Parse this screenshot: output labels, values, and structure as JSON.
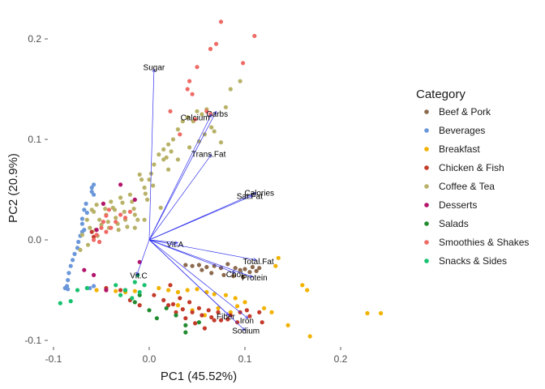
{
  "chart_data": {
    "type": "scatter",
    "subtype": "pca-biplot",
    "xlabel": "PC1 (45.52%)",
    "ylabel": "PC2 (20.9%)",
    "xlim": [
      -0.1,
      0.23
    ],
    "ylim": [
      -0.105,
      0.22
    ],
    "x_ticks": [
      -0.1,
      0.0,
      0.1,
      0.2
    ],
    "x_tick_labels": [
      "-0.1",
      "0.0",
      "0.1",
      "0.2"
    ],
    "y_ticks": [
      -0.1,
      0.0,
      0.1,
      0.2
    ],
    "y_tick_labels": [
      "-0.1",
      "0.0",
      "0.1",
      "0.2"
    ],
    "grid": false,
    "legend": {
      "title": "Category",
      "position": "right",
      "entries": [
        {
          "name": "Beef & Pork",
          "color": "#8B6A4E"
        },
        {
          "name": "Beverages",
          "color": "#6A97D9"
        },
        {
          "name": "Breakfast",
          "color": "#F2B200"
        },
        {
          "name": "Chicken & Fish",
          "color": "#C43A2A"
        },
        {
          "name": "Coffee & Tea",
          "color": "#B8B268"
        },
        {
          "name": "Desserts",
          "color": "#B2156B"
        },
        {
          "name": "Salads",
          "color": "#238B2F"
        },
        {
          "name": "Smoothies & Shakes",
          "color": "#EF6B66"
        },
        {
          "name": "Snacks & Sides",
          "color": "#17C26E"
        }
      ]
    },
    "vectors": [
      {
        "name": "Sugar",
        "x": 0.005,
        "y": 0.17,
        "label_x": 0.005,
        "label_y": 0.172
      },
      {
        "name": "Calcium",
        "x": 0.065,
        "y": 0.125,
        "label_x": 0.048,
        "label_y": 0.122
      },
      {
        "name": "Carbs",
        "x": 0.07,
        "y": 0.128,
        "label_x": 0.071,
        "label_y": 0.126
      },
      {
        "name": "Trans.Fat",
        "x": 0.065,
        "y": 0.085,
        "label_x": 0.062,
        "label_y": 0.086
      },
      {
        "name": "Calories",
        "x": 0.112,
        "y": 0.047,
        "label_x": 0.115,
        "label_y": 0.047
      },
      {
        "name": "Sat.Fat",
        "x": 0.108,
        "y": 0.044,
        "label_x": 0.105,
        "label_y": 0.044
      },
      {
        "name": "Vit.A",
        "x": 0.03,
        "y": -0.003,
        "label_x": 0.027,
        "label_y": -0.004
      },
      {
        "name": "Total.Fat",
        "x": 0.112,
        "y": -0.02,
        "label_x": 0.114,
        "label_y": -0.021
      },
      {
        "name": "Chol",
        "x": 0.09,
        "y": -0.033,
        "label_x": 0.089,
        "label_y": -0.034
      },
      {
        "name": "Protein",
        "x": 0.108,
        "y": -0.037,
        "label_x": 0.11,
        "label_y": -0.037
      },
      {
        "name": "Vit.C",
        "x": -0.013,
        "y": -0.035,
        "label_x": -0.011,
        "label_y": -0.035
      },
      {
        "name": "Fiber",
        "x": 0.083,
        "y": -0.075,
        "label_x": 0.08,
        "label_y": -0.076
      },
      {
        "name": "Iron",
        "x": 0.103,
        "y": -0.078,
        "label_x": 0.102,
        "label_y": -0.08
      },
      {
        "name": "Sodium",
        "x": 0.1,
        "y": -0.09,
        "label_x": 0.101,
        "label_y": -0.09
      }
    ],
    "series": [
      {
        "name": "Beef & Pork",
        "points": [
          [
            0.038,
            -0.025
          ],
          [
            0.045,
            -0.026
          ],
          [
            0.052,
            -0.025
          ],
          [
            0.06,
            -0.027
          ],
          [
            0.068,
            -0.026
          ],
          [
            0.075,
            -0.028
          ],
          [
            0.082,
            -0.024
          ],
          [
            0.09,
            -0.028
          ],
          [
            0.095,
            -0.03
          ],
          [
            0.1,
            -0.029
          ],
          [
            0.105,
            -0.032
          ],
          [
            0.108,
            -0.027
          ],
          [
            0.112,
            -0.031
          ],
          [
            0.115,
            -0.028
          ],
          [
            0.055,
            -0.03
          ],
          [
            0.065,
            -0.033
          ],
          [
            0.078,
            -0.035
          ],
          [
            0.088,
            -0.036
          ],
          [
            0.098,
            -0.037
          ]
        ]
      },
      {
        "name": "Beverages",
        "points": [
          [
            -0.058,
            0.055
          ],
          [
            -0.06,
            0.052
          ],
          [
            -0.06,
            0.048
          ],
          [
            -0.058,
            0.045
          ],
          [
            -0.068,
            0.03
          ],
          [
            -0.065,
            0.027
          ],
          [
            -0.07,
            0.021
          ],
          [
            -0.07,
            0.016
          ],
          [
            -0.068,
            0.01
          ],
          [
            -0.072,
            0.004
          ],
          [
            -0.074,
            -0.002
          ],
          [
            -0.075,
            -0.008
          ],
          [
            -0.078,
            -0.014
          ],
          [
            -0.08,
            -0.02
          ],
          [
            -0.082,
            -0.026
          ],
          [
            -0.084,
            -0.033
          ],
          [
            -0.085,
            -0.04
          ],
          [
            -0.086,
            -0.046
          ],
          [
            -0.088,
            -0.048
          ],
          [
            -0.085,
            -0.049
          ],
          [
            -0.062,
            -0.048
          ],
          [
            -0.058,
            -0.046
          ],
          [
            -0.066,
            0.036
          ],
          [
            -0.07,
            0.008
          ]
        ]
      },
      {
        "name": "Breakfast",
        "points": [
          [
            -0.055,
            -0.05
          ],
          [
            -0.045,
            -0.05
          ],
          [
            -0.035,
            -0.051
          ],
          [
            -0.025,
            -0.052
          ],
          [
            -0.015,
            -0.051
          ],
          [
            0.01,
            -0.048
          ],
          [
            0.02,
            -0.05
          ],
          [
            0.03,
            -0.052
          ],
          [
            0.04,
            -0.05
          ],
          [
            0.05,
            -0.049
          ],
          [
            0.06,
            -0.052
          ],
          [
            0.068,
            -0.054
          ],
          [
            0.08,
            -0.055
          ],
          [
            0.09,
            -0.058
          ],
          [
            0.1,
            -0.062
          ],
          [
            0.12,
            -0.068
          ],
          [
            0.128,
            -0.072
          ],
          [
            0.132,
            -0.026
          ],
          [
            0.135,
            -0.018
          ],
          [
            0.16,
            -0.045
          ],
          [
            0.165,
            -0.05
          ],
          [
            0.145,
            -0.085
          ],
          [
            0.168,
            -0.096
          ],
          [
            0.228,
            -0.073
          ],
          [
            0.242,
            -0.073
          ],
          [
            0.03,
            -0.065
          ],
          [
            0.045,
            -0.07
          ],
          [
            0.058,
            -0.075
          ],
          [
            0.072,
            -0.068
          ],
          [
            0.085,
            -0.072
          ],
          [
            0.092,
            -0.066
          ]
        ]
      },
      {
        "name": "Chicken & Fish",
        "points": [
          [
            -0.045,
            -0.048
          ],
          [
            -0.03,
            -0.05
          ],
          [
            -0.02,
            -0.06
          ],
          [
            -0.01,
            -0.065
          ],
          [
            0.005,
            -0.055
          ],
          [
            0.015,
            -0.06
          ],
          [
            0.025,
            -0.064
          ],
          [
            0.035,
            -0.069
          ],
          [
            0.045,
            -0.072
          ],
          [
            0.055,
            -0.075
          ],
          [
            0.065,
            -0.077
          ],
          [
            0.075,
            -0.08
          ],
          [
            0.085,
            -0.075
          ],
          [
            0.095,
            -0.072
          ],
          [
            0.105,
            -0.076
          ],
          [
            0.115,
            -0.072
          ],
          [
            0.118,
            -0.082
          ],
          [
            0.022,
            -0.045
          ],
          [
            0.032,
            -0.058
          ],
          [
            0.042,
            -0.062
          ],
          [
            0.052,
            -0.068
          ],
          [
            0.062,
            -0.07
          ],
          [
            0.072,
            -0.072
          ],
          [
            0.02,
            -0.065
          ],
          [
            0.028,
            -0.072
          ],
          [
            0.038,
            -0.078
          ],
          [
            0.048,
            -0.083
          ],
          [
            0.058,
            -0.088
          ],
          [
            0.068,
            -0.08
          ],
          [
            0.082,
            -0.079
          ],
          [
            0.092,
            -0.082
          ],
          [
            0.102,
            -0.07
          ],
          [
            -0.058,
            0.003
          ],
          [
            -0.06,
            0.008
          ]
        ]
      },
      {
        "name": "Coffee & Tea",
        "points": [
          [
            -0.06,
            0.03
          ],
          [
            -0.058,
            0.028
          ],
          [
            -0.055,
            0.035
          ],
          [
            -0.052,
            0.02
          ],
          [
            -0.05,
            0.015
          ],
          [
            -0.048,
            0.036
          ],
          [
            -0.046,
            0.031
          ],
          [
            -0.045,
            0.025
          ],
          [
            -0.043,
            0.018
          ],
          [
            -0.042,
            0.012
          ],
          [
            -0.04,
            0.038
          ],
          [
            -0.038,
            0.032
          ],
          [
            -0.036,
            0.03
          ],
          [
            -0.035,
            0.022
          ],
          [
            -0.033,
            0.016
          ],
          [
            -0.032,
            0.01
          ],
          [
            -0.03,
            0.042
          ],
          [
            -0.028,
            0.037
          ],
          [
            -0.026,
            0.028
          ],
          [
            -0.025,
            0.02
          ],
          [
            -0.023,
            0.013
          ],
          [
            -0.02,
            0.045
          ],
          [
            -0.018,
            0.038
          ],
          [
            -0.016,
            0.031
          ],
          [
            -0.015,
            0.025
          ],
          [
            -0.012,
            0.02
          ],
          [
            -0.01,
            0.065
          ],
          [
            -0.008,
            0.06
          ],
          [
            -0.005,
            0.052
          ],
          [
            -0.004,
            0.046
          ],
          [
            -0.002,
            0.04
          ],
          [
            0.0,
            0.06
          ],
          [
            0.002,
            0.066
          ],
          [
            0.004,
            0.054
          ],
          [
            0.005,
            0.075
          ],
          [
            0.01,
            0.085
          ],
          [
            0.015,
            0.09
          ],
          [
            0.018,
            0.082
          ],
          [
            0.02,
            0.095
          ],
          [
            0.023,
            0.088
          ],
          [
            0.025,
            0.1
          ],
          [
            0.03,
            0.11
          ],
          [
            0.035,
            0.118
          ],
          [
            0.04,
            0.122
          ],
          [
            0.046,
            0.118
          ],
          [
            0.05,
            0.128
          ],
          [
            0.055,
            0.125
          ],
          [
            0.06,
            0.13
          ],
          [
            0.065,
            0.112
          ],
          [
            0.068,
            0.108
          ],
          [
            0.075,
            0.097
          ],
          [
            0.08,
            0.132
          ],
          [
            0.085,
            0.15
          ],
          [
            0.095,
            0.158
          ],
          [
            0.042,
            0.092
          ],
          [
            0.052,
            0.098
          ],
          [
            0.058,
            0.105
          ],
          [
            0.03,
            0.08
          ],
          [
            0.02,
            0.07
          ],
          [
            -0.065,
            0.02
          ],
          [
            -0.062,
            0.012
          ],
          [
            -0.07,
            0.005
          ],
          [
            -0.072,
            -0.01
          ],
          [
            -0.056,
            0.01
          ],
          [
            -0.054,
            0.004
          ],
          [
            -0.064,
            -0.005
          ],
          [
            -0.015,
            0.012
          ],
          [
            -0.005,
            0.02
          ],
          [
            0.012,
            0.032
          ],
          [
            0.015,
            0.08
          ]
        ]
      },
      {
        "name": "Desserts",
        "points": [
          [
            -0.068,
            -0.03
          ],
          [
            -0.058,
            -0.035
          ],
          [
            -0.045,
            -0.05
          ],
          [
            -0.03,
            0.055
          ],
          [
            -0.015,
            0.04
          ],
          [
            -0.01,
            -0.022
          ],
          [
            -0.048,
            0.036
          ],
          [
            -0.055,
            0.01
          ]
        ]
      },
      {
        "name": "Salads",
        "points": [
          [
            -0.01,
            -0.055
          ],
          [
            0.0,
            -0.07
          ],
          [
            0.008,
            -0.078
          ],
          [
            0.018,
            -0.068
          ],
          [
            0.028,
            -0.075
          ],
          [
            0.038,
            -0.085
          ],
          [
            0.052,
            -0.082
          ],
          [
            0.038,
            -0.092
          ],
          [
            -0.025,
            -0.05
          ],
          [
            -0.015,
            -0.062
          ]
        ]
      },
      {
        "name": "Smoothies & Shakes",
        "points": [
          [
            0.075,
            0.217
          ],
          [
            0.11,
            0.203
          ],
          [
            0.07,
            0.195
          ],
          [
            0.064,
            0.19
          ],
          [
            0.098,
            0.176
          ],
          [
            0.05,
            0.172
          ],
          [
            0.042,
            0.158
          ],
          [
            0.04,
            0.15
          ],
          [
            0.045,
            0.145
          ],
          [
            0.06,
            0.128
          ],
          [
            0.064,
            0.125
          ],
          [
            0.048,
            0.12
          ],
          [
            0.022,
            0.128
          ],
          [
            0.032,
            0.105
          ],
          [
            -0.048,
            0.018
          ],
          [
            -0.045,
            0.024
          ],
          [
            -0.042,
            0.03
          ],
          [
            -0.05,
            0.012
          ],
          [
            -0.055,
            0.005
          ],
          [
            -0.058,
            0.0
          ],
          [
            -0.052,
            -0.002
          ],
          [
            -0.045,
            0.008
          ],
          [
            -0.04,
            0.012
          ],
          [
            -0.035,
            0.018
          ],
          [
            -0.03,
            0.025
          ],
          [
            -0.025,
            0.022
          ],
          [
            -0.02,
            0.028
          ]
        ]
      },
      {
        "name": "Snacks & Sides",
        "points": [
          [
            -0.093,
            -0.063
          ],
          [
            -0.075,
            -0.05
          ],
          [
            -0.065,
            -0.048
          ],
          [
            -0.035,
            -0.045
          ],
          [
            -0.025,
            -0.05
          ],
          [
            -0.015,
            -0.042
          ],
          [
            -0.005,
            -0.045
          ],
          [
            -0.018,
            -0.058
          ],
          [
            -0.01,
            -0.052
          ],
          [
            -0.082,
            -0.061
          ],
          [
            -0.03,
            -0.055
          ],
          [
            -0.012,
            -0.035
          ]
        ]
      }
    ]
  }
}
